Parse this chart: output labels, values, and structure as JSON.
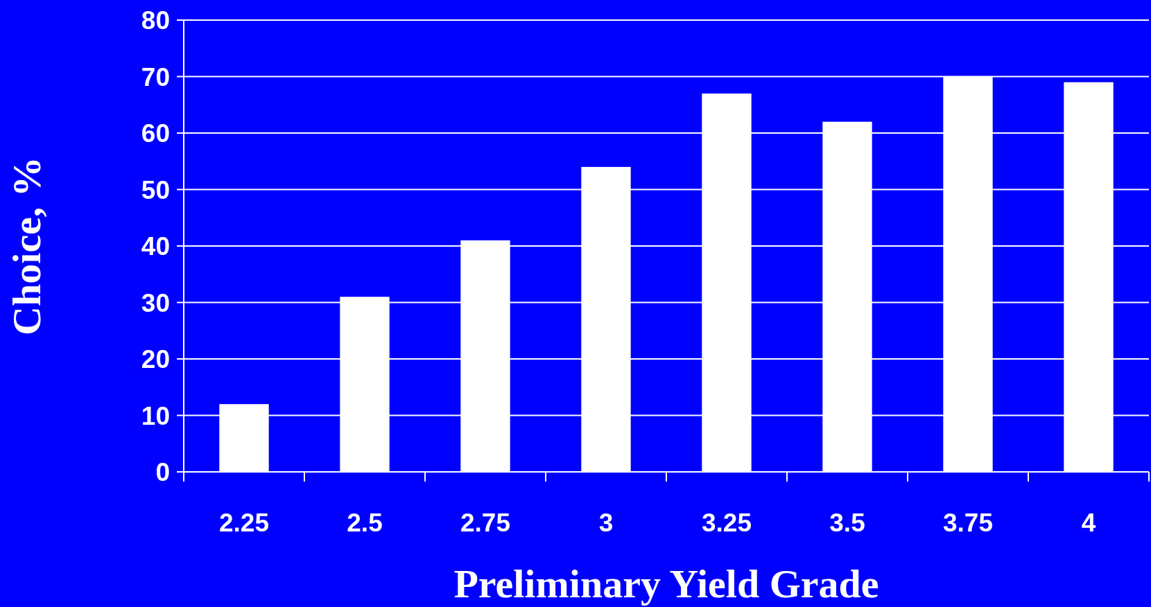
{
  "chart_data": {
    "type": "bar",
    "xlabel": "Preliminary Yield Grade",
    "ylabel": "Choice, %",
    "categories": [
      "2.25",
      "2.5",
      "2.75",
      "3",
      "3.25",
      "3.5",
      "3.75",
      "4"
    ],
    "values": [
      12,
      31,
      41,
      54,
      67,
      62,
      70,
      69
    ],
    "color": "#ffffff",
    "ylim": [
      0,
      80
    ],
    "yticks": [
      0,
      10,
      20,
      30,
      40,
      50,
      60,
      70,
      80
    ],
    "grid": "y"
  }
}
